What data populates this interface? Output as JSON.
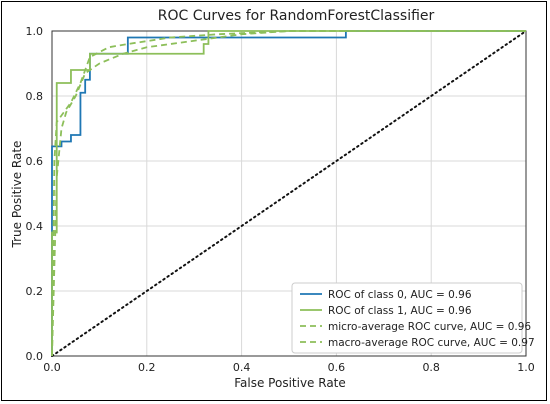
{
  "chart_data": {
    "type": "line",
    "title": "ROC Curves for RandomForestClassifier",
    "xlabel": "False Positive Rate",
    "ylabel": "True Positive Rate",
    "xlim": [
      0.0,
      1.0
    ],
    "ylim": [
      0.0,
      1.0
    ],
    "xticks": [
      "0.0",
      "0.2",
      "0.4",
      "0.6",
      "0.8",
      "1.0"
    ],
    "yticks": [
      "0.0",
      "0.2",
      "0.4",
      "0.6",
      "0.8",
      "1.0"
    ],
    "grid": true,
    "legend_position": "lower-right",
    "colors": {
      "class0": "#1f77b4",
      "class1": "#8dbf5a",
      "chance": "#111111",
      "grid": "#d9d9d9",
      "axes": "#333333"
    },
    "series": [
      {
        "name": "ROC of class 0, AUC = 0.96",
        "style": "solid",
        "color_key": "class0",
        "x": [
          0.0,
          0.0,
          0.02,
          0.02,
          0.04,
          0.04,
          0.06,
          0.06,
          0.07,
          0.07,
          0.08,
          0.08,
          0.16,
          0.16,
          0.62,
          0.62,
          1.0
        ],
        "y": [
          0.0,
          0.645,
          0.645,
          0.66,
          0.66,
          0.68,
          0.68,
          0.81,
          0.81,
          0.85,
          0.85,
          0.93,
          0.93,
          0.98,
          0.98,
          1.0,
          1.0
        ]
      },
      {
        "name": "ROC of class 1, AUC = 0.96",
        "style": "solid",
        "color_key": "class1",
        "x": [
          0.0,
          0.0,
          0.01,
          0.01,
          0.04,
          0.04,
          0.08,
          0.08,
          0.32,
          0.32,
          0.33,
          0.33,
          1.0
        ],
        "y": [
          0.0,
          0.38,
          0.38,
          0.84,
          0.84,
          0.88,
          0.88,
          0.93,
          0.93,
          0.96,
          0.96,
          1.0,
          1.0
        ]
      },
      {
        "name": "micro-average ROC curve, AUC = 0.96",
        "style": "dashed",
        "color_key": "class1",
        "x": [
          0.0,
          0.01,
          0.02,
          0.03,
          0.05,
          0.07,
          0.1,
          0.15,
          0.2,
          0.3,
          0.4,
          0.5,
          1.0
        ],
        "y": [
          0.0,
          0.55,
          0.7,
          0.75,
          0.8,
          0.87,
          0.9,
          0.93,
          0.95,
          0.97,
          0.99,
          1.0,
          1.0
        ]
      },
      {
        "name": "macro-average ROC curve, AUC = 0.97",
        "style": "dashed",
        "color_key": "class1",
        "x": [
          0.0,
          0.005,
          0.01,
          0.02,
          0.04,
          0.06,
          0.08,
          0.12,
          0.16,
          0.25,
          0.35,
          0.5,
          1.0
        ],
        "y": [
          0.0,
          0.6,
          0.72,
          0.74,
          0.78,
          0.84,
          0.92,
          0.95,
          0.96,
          0.98,
          0.99,
          1.0,
          1.0
        ]
      }
    ],
    "reference_line": {
      "x": [
        0.0,
        1.0
      ],
      "y": [
        0.0,
        1.0
      ],
      "style": "dotted",
      "color_key": "chance"
    }
  }
}
